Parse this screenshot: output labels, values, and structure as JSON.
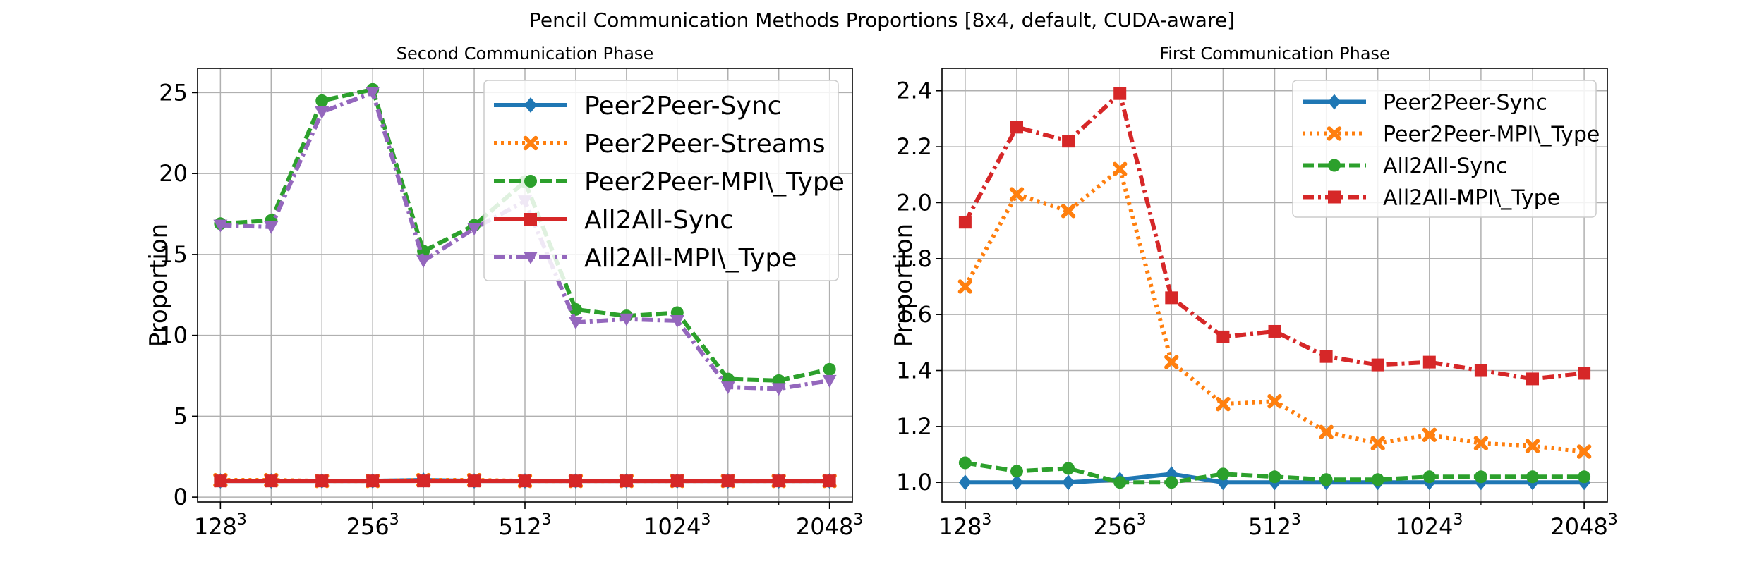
{
  "figure": {
    "title": "Pencil Communication Methods Proportions [8x4, default, CUDA-aware]"
  },
  "chart_data": [
    {
      "type": "line",
      "title": "Second Communication Phase",
      "xlabel": "",
      "ylabel": "Proportion",
      "x": [
        1,
        2,
        3,
        4,
        5,
        6,
        7,
        8,
        9,
        10,
        11,
        12,
        13
      ],
      "xticks": [
        {
          "x": 1,
          "base": "128",
          "exp": "3"
        },
        {
          "x": 4,
          "base": "256",
          "exp": "3"
        },
        {
          "x": 7,
          "base": "512",
          "exp": "3"
        },
        {
          "x": 10,
          "base": "1024",
          "exp": "3"
        },
        {
          "x": 13,
          "base": "2048",
          "exp": "3"
        }
      ],
      "yticks": [
        0,
        5,
        10,
        15,
        20,
        25
      ],
      "xlim": [
        0.55,
        13.45
      ],
      "ylim": [
        -0.3,
        26.5
      ],
      "grid": true,
      "legend_position": "top-right",
      "legend_font": "large",
      "series": [
        {
          "name": "Peer2Peer-Sync",
          "color": "#1f77b4",
          "dash": "solid",
          "marker": "diamond",
          "values": [
            1.0,
            1.0,
            1.0,
            1.0,
            1.05,
            1.0,
            1.0,
            1.0,
            1.0,
            1.0,
            1.0,
            1.0,
            1.0
          ]
        },
        {
          "name": "Peer2Peer-Streams",
          "color": "#ff7f0e",
          "dash": "dotted",
          "marker": "x",
          "values": [
            1.05,
            1.05,
            1.0,
            1.0,
            1.05,
            1.05,
            1.0,
            1.0,
            1.0,
            1.0,
            1.0,
            1.0,
            1.0
          ]
        },
        {
          "name": "Peer2Peer-MPI\\_Type",
          "color": "#2ca02c",
          "dash": "dashed",
          "marker": "circle",
          "values": [
            16.9,
            17.1,
            24.5,
            25.2,
            15.2,
            16.8,
            19.5,
            11.6,
            11.2,
            11.4,
            7.3,
            7.2,
            7.9
          ]
        },
        {
          "name": "All2All-Sync",
          "color": "#d62728",
          "dash": "solid",
          "marker": "square",
          "values": [
            1.0,
            1.0,
            1.0,
            1.0,
            1.0,
            1.0,
            1.0,
            1.0,
            1.0,
            1.0,
            1.0,
            1.0,
            1.0
          ]
        },
        {
          "name": "All2All-MPI\\_Type",
          "color": "#9467bd",
          "dash": "dashdot",
          "marker": "triangle-down",
          "values": [
            16.8,
            16.7,
            23.8,
            25.0,
            14.6,
            16.6,
            18.3,
            10.8,
            11.0,
            10.9,
            6.8,
            6.7,
            7.2
          ]
        }
      ]
    },
    {
      "type": "line",
      "title": "First Communication Phase",
      "xlabel": "",
      "ylabel": "Proportion",
      "x": [
        1,
        2,
        3,
        4,
        5,
        6,
        7,
        8,
        9,
        10,
        11,
        12,
        13
      ],
      "xticks": [
        {
          "x": 1,
          "base": "128",
          "exp": "3"
        },
        {
          "x": 4,
          "base": "256",
          "exp": "3"
        },
        {
          "x": 7,
          "base": "512",
          "exp": "3"
        },
        {
          "x": 10,
          "base": "1024",
          "exp": "3"
        },
        {
          "x": 13,
          "base": "2048",
          "exp": "3"
        }
      ],
      "yticks": [
        1.0,
        1.2,
        1.4,
        1.6,
        1.8,
        2.0,
        2.2,
        2.4
      ],
      "ytick_labels": [
        "1.0",
        "1.2",
        "1.4",
        "1.6",
        "1.8",
        "2.0",
        "2.2",
        "2.4"
      ],
      "xlim": [
        0.55,
        13.45
      ],
      "ylim": [
        0.93,
        2.48
      ],
      "grid": true,
      "legend_position": "top-right",
      "legend_font": "medium",
      "series": [
        {
          "name": "Peer2Peer-Sync",
          "color": "#1f77b4",
          "dash": "solid",
          "marker": "diamond",
          "values": [
            1.0,
            1.0,
            1.0,
            1.01,
            1.03,
            1.0,
            1.0,
            1.0,
            1.0,
            1.0,
            1.0,
            1.0,
            1.0
          ]
        },
        {
          "name": "Peer2Peer-MPI\\_Type",
          "color": "#ff7f0e",
          "dash": "dotted",
          "marker": "x",
          "values": [
            1.7,
            2.03,
            1.97,
            2.12,
            1.43,
            1.28,
            1.29,
            1.18,
            1.14,
            1.17,
            1.14,
            1.13,
            1.11
          ]
        },
        {
          "name": "All2All-Sync",
          "color": "#2ca02c",
          "dash": "dashed",
          "marker": "circle",
          "values": [
            1.07,
            1.04,
            1.05,
            1.0,
            1.0,
            1.03,
            1.02,
            1.01,
            1.01,
            1.02,
            1.02,
            1.02,
            1.02
          ]
        },
        {
          "name": "All2All-MPI\\_Type",
          "color": "#d62728",
          "dash": "dashdot",
          "marker": "square",
          "values": [
            1.93,
            2.27,
            2.22,
            2.39,
            1.66,
            1.52,
            1.54,
            1.45,
            1.42,
            1.43,
            1.4,
            1.37,
            1.39
          ]
        }
      ]
    }
  ]
}
